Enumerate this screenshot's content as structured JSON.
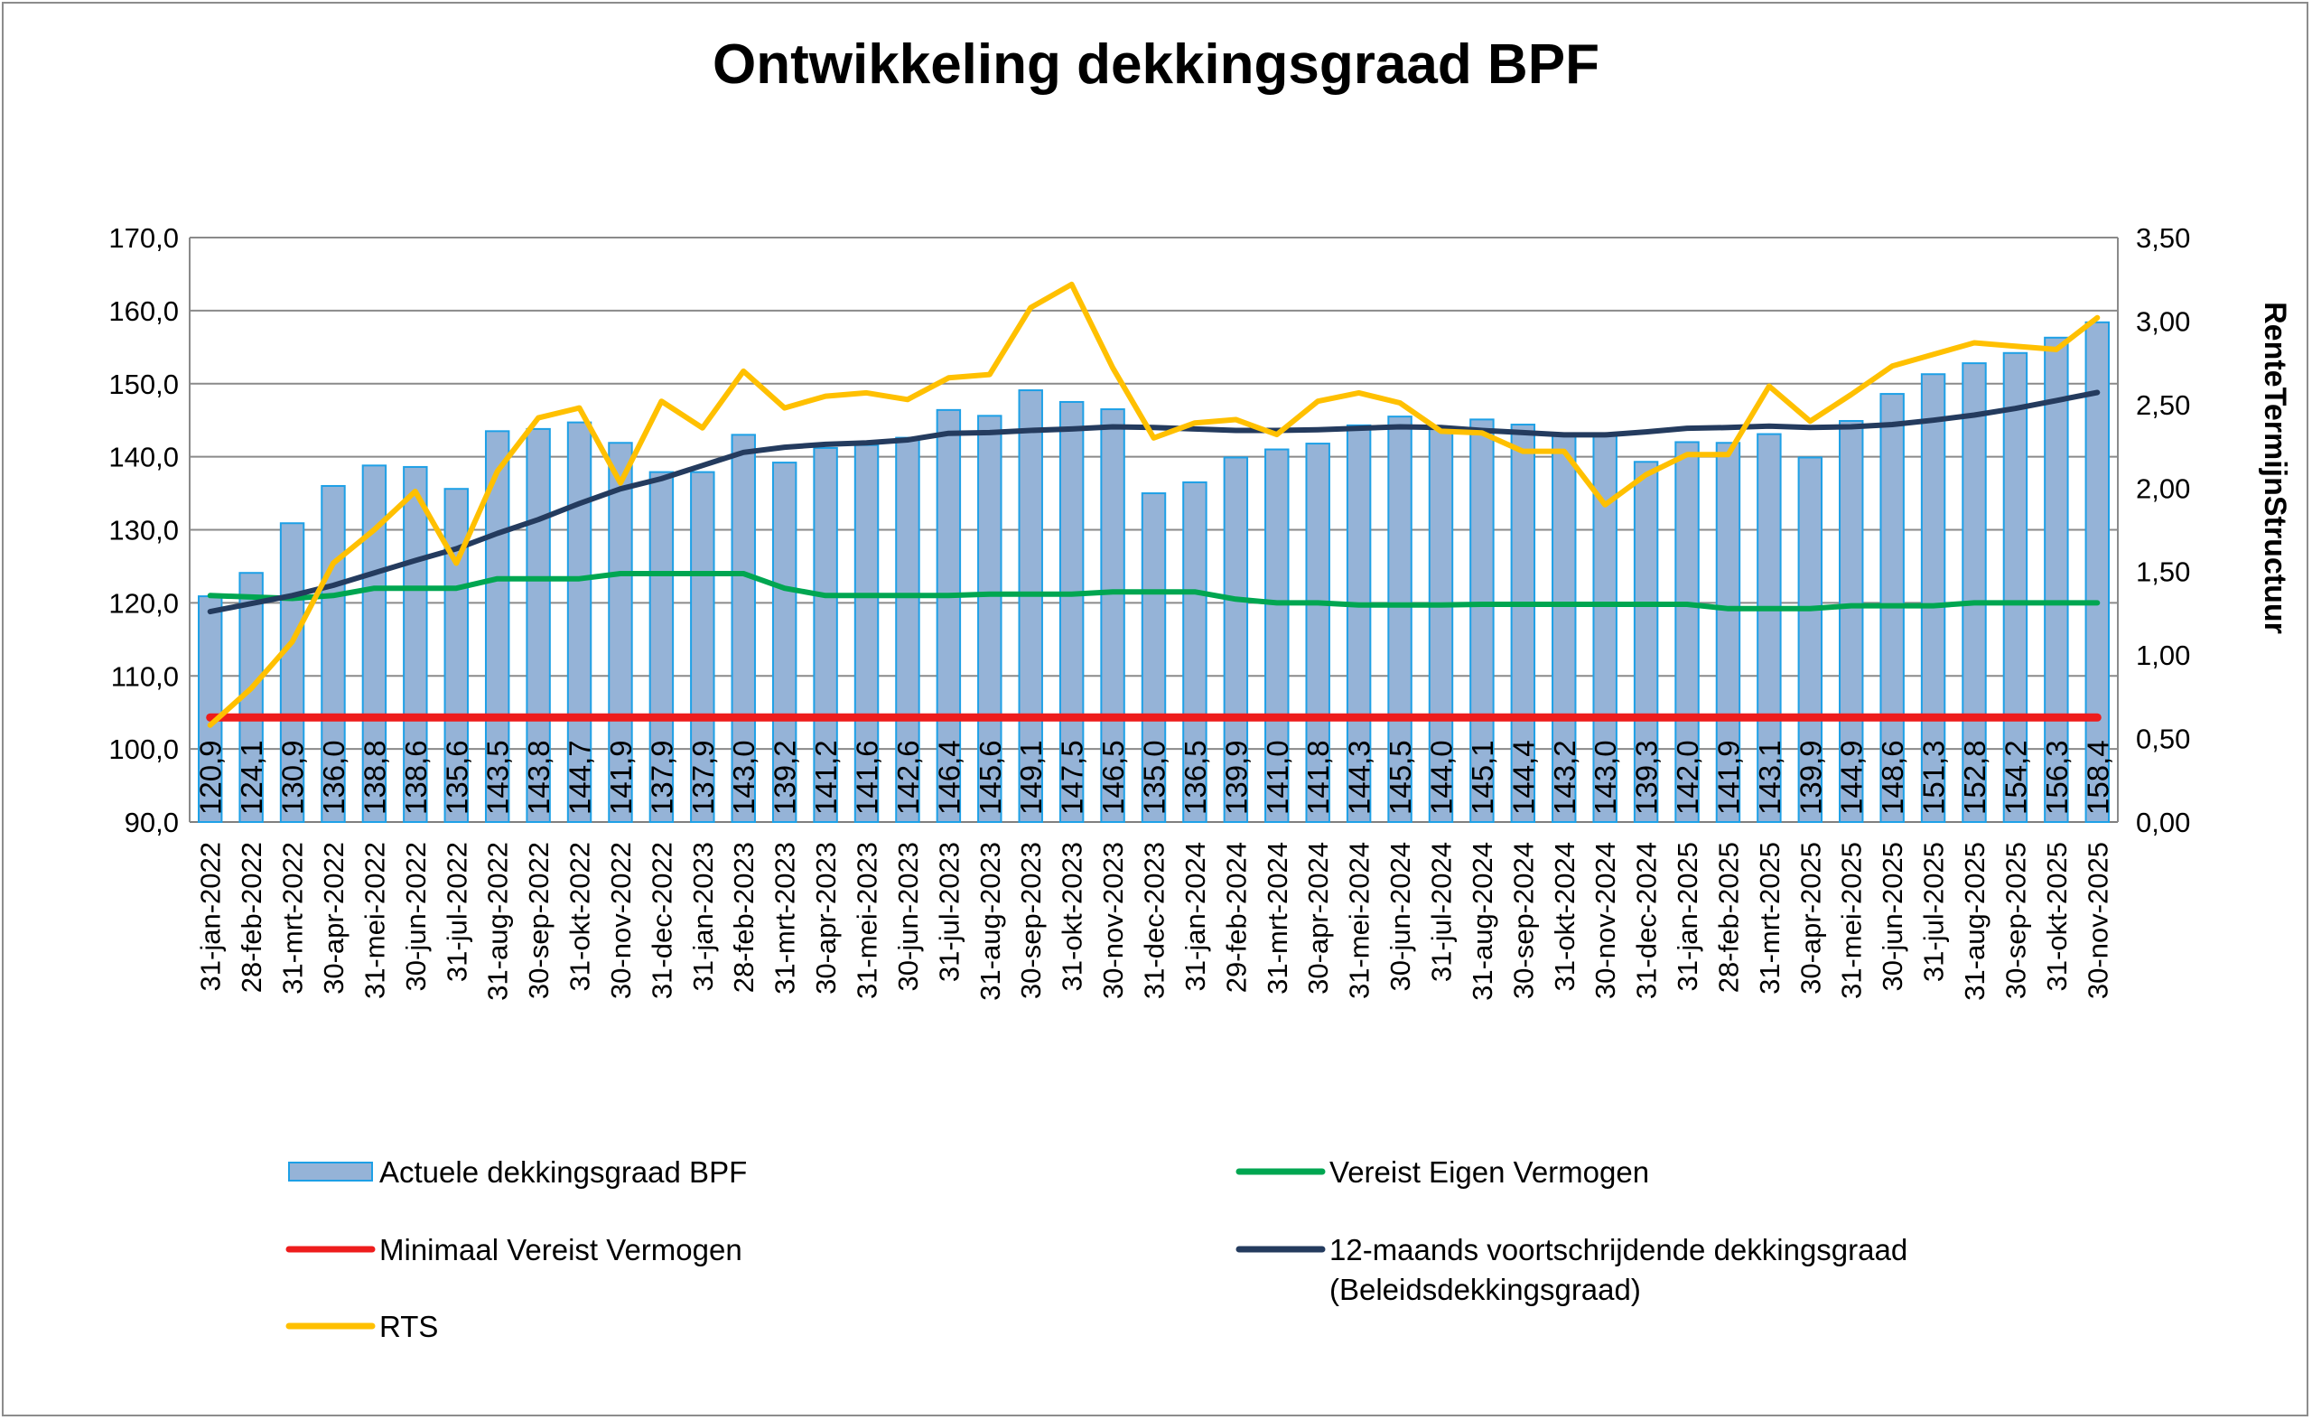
{
  "chart_data": {
    "type": "bar",
    "title": "Ontwikkeling dekkingsgraad BPF",
    "xlabel": "",
    "ylabel": "",
    "y2label": "RenteTermijnStructuur",
    "ylim": [
      90,
      170
    ],
    "y2lim": [
      0,
      3.5
    ],
    "yticks": [
      "90,0",
      "100,0",
      "110,0",
      "120,0",
      "130,0",
      "140,0",
      "150,0",
      "160,0",
      "170,0"
    ],
    "y2ticks": [
      "0,00",
      "0,50",
      "1,00",
      "1,50",
      "2,00",
      "2,50",
      "3,00",
      "3,50"
    ],
    "grid": true,
    "legend_position": "bottom",
    "categories": [
      "31-jan-2022",
      "28-feb-2022",
      "31-mrt-2022",
      "30-apr-2022",
      "31-mei-2022",
      "30-jun-2022",
      "31-jul-2022",
      "31-aug-2022",
      "30-sep-2022",
      "31-okt-2022",
      "30-nov-2022",
      "31-dec-2022",
      "31-jan-2023",
      "28-feb-2023",
      "31-mrt-2023",
      "30-apr-2023",
      "31-mei-2023",
      "30-jun-2023",
      "31-jul-2023",
      "31-aug-2023",
      "30-sep-2023",
      "31-okt-2023",
      "30-nov-2023",
      "31-dec-2023",
      "31-jan-2024",
      "29-feb-2024",
      "31-mrt-2024",
      "30-apr-2024",
      "31-mei-2024",
      "30-jun-2024",
      "31-jul-2024",
      "31-aug-2024",
      "30-sep-2024",
      "31-okt-2024",
      "30-nov-2024",
      "31-dec-2024",
      "31-jan-2025",
      "28-feb-2025",
      "31-mrt-2025",
      "30-apr-2025",
      "31-mei-2025",
      "30-jun-2025",
      "31-jul-2025",
      "31-aug-2025",
      "30-sep-2025",
      "31-okt-2025",
      "30-nov-2025"
    ],
    "series": [
      {
        "name": "Actuele dekkingsgraad BPF",
        "type": "bar",
        "axis": "left",
        "color": "#95b3d7",
        "border": "#1ea0e6",
        "values": [
          120.9,
          124.1,
          130.9,
          136.0,
          138.8,
          138.6,
          135.6,
          143.5,
          143.8,
          144.7,
          141.9,
          137.9,
          137.9,
          143.0,
          139.2,
          141.2,
          141.6,
          142.6,
          146.4,
          145.6,
          149.1,
          147.5,
          146.5,
          135.0,
          136.5,
          139.9,
          141.0,
          141.8,
          144.3,
          145.5,
          144.0,
          145.1,
          144.4,
          143.2,
          143.0,
          139.3,
          142.0,
          141.9,
          143.1,
          139.9,
          144.9,
          148.6,
          151.3,
          152.8,
          154.2,
          156.3,
          158.4
        ],
        "labels": [
          "120,9",
          "124,1",
          "130,9",
          "136,0",
          "138,8",
          "138,6",
          "135,6",
          "143,5",
          "143,8",
          "144,7",
          "141,9",
          "137,9",
          "137,9",
          "143,0",
          "139,2",
          "141,2",
          "141,6",
          "142,6",
          "146,4",
          "145,6",
          "149,1",
          "147,5",
          "146,5",
          "135,0",
          "136,5",
          "139,9",
          "141,0",
          "141,8",
          "144,3",
          "145,5",
          "144,0",
          "145,1",
          "144,4",
          "143,2",
          "143,0",
          "139,3",
          "142,0",
          "141,9",
          "143,1",
          "139,9",
          "144,9",
          "148,6",
          "151,3",
          "152,8",
          "154,2",
          "156,3",
          "158,4"
        ]
      },
      {
        "name": "Vereist Eigen Vermogen",
        "type": "line",
        "axis": "left",
        "color": "#00a651",
        "values": [
          121.0,
          120.8,
          120.6,
          121.0,
          122.0,
          122.0,
          122.0,
          123.3,
          123.3,
          123.3,
          124.0,
          124.0,
          124.0,
          124.0,
          122.0,
          121.0,
          121.0,
          121.0,
          121.0,
          121.2,
          121.2,
          121.2,
          121.5,
          121.5,
          121.5,
          120.5,
          120.0,
          120.0,
          119.7,
          119.7,
          119.7,
          119.8,
          119.8,
          119.8,
          119.8,
          119.8,
          119.8,
          119.2,
          119.2,
          119.2,
          119.6,
          119.6,
          119.6,
          120.0,
          120.0,
          120.0,
          120.0
        ]
      },
      {
        "name": "Minimaal Vereist Vermogen",
        "type": "line",
        "axis": "left",
        "color": "#ee1c1c",
        "values": [
          104.3,
          104.3,
          104.3,
          104.3,
          104.3,
          104.3,
          104.3,
          104.3,
          104.3,
          104.3,
          104.3,
          104.3,
          104.3,
          104.3,
          104.3,
          104.3,
          104.3,
          104.3,
          104.3,
          104.3,
          104.3,
          104.3,
          104.3,
          104.3,
          104.3,
          104.3,
          104.3,
          104.3,
          104.3,
          104.3,
          104.3,
          104.3,
          104.3,
          104.3,
          104.3,
          104.3,
          104.3,
          104.3,
          104.3,
          104.3,
          104.3,
          104.3,
          104.3,
          104.3,
          104.3,
          104.3,
          104.3
        ]
      },
      {
        "name": "12-maands voortschrijdende dekkingsgraad (Beleidsdekkingsgraad)",
        "name_lines": [
          "12-maands voortschrijdende dekkingsgraad",
          "(Beleidsdekkingsgraad)"
        ],
        "type": "line",
        "axis": "left",
        "color": "#243b5e",
        "values": [
          118.8,
          119.9,
          121.0,
          122.4,
          124.1,
          125.8,
          127.4,
          129.5,
          131.4,
          133.6,
          135.6,
          137.0,
          138.8,
          140.6,
          141.3,
          141.7,
          141.9,
          142.3,
          143.2,
          143.3,
          143.6,
          143.8,
          144.1,
          144.0,
          143.8,
          143.6,
          143.6,
          143.7,
          143.9,
          144.1,
          144.0,
          143.6,
          143.3,
          143.0,
          143.0,
          143.4,
          143.9,
          144.0,
          144.2,
          144.0,
          144.1,
          144.4,
          145.0,
          145.7,
          146.6,
          147.7,
          148.8
        ]
      },
      {
        "name": "RTS",
        "type": "line",
        "axis": "right",
        "color": "#ffc000",
        "values": [
          0.58,
          0.8,
          1.08,
          1.55,
          1.75,
          1.98,
          1.55,
          2.1,
          2.42,
          2.48,
          2.03,
          2.52,
          2.36,
          2.7,
          2.48,
          2.55,
          2.57,
          2.53,
          2.66,
          2.68,
          3.08,
          3.22,
          2.72,
          2.3,
          2.39,
          2.41,
          2.32,
          2.52,
          2.57,
          2.51,
          2.34,
          2.33,
          2.22,
          2.22,
          1.9,
          2.08,
          2.2,
          2.2,
          2.61,
          2.4,
          2.56,
          2.73,
          2.8,
          2.87,
          2.85,
          2.83,
          3.02
        ]
      }
    ]
  }
}
